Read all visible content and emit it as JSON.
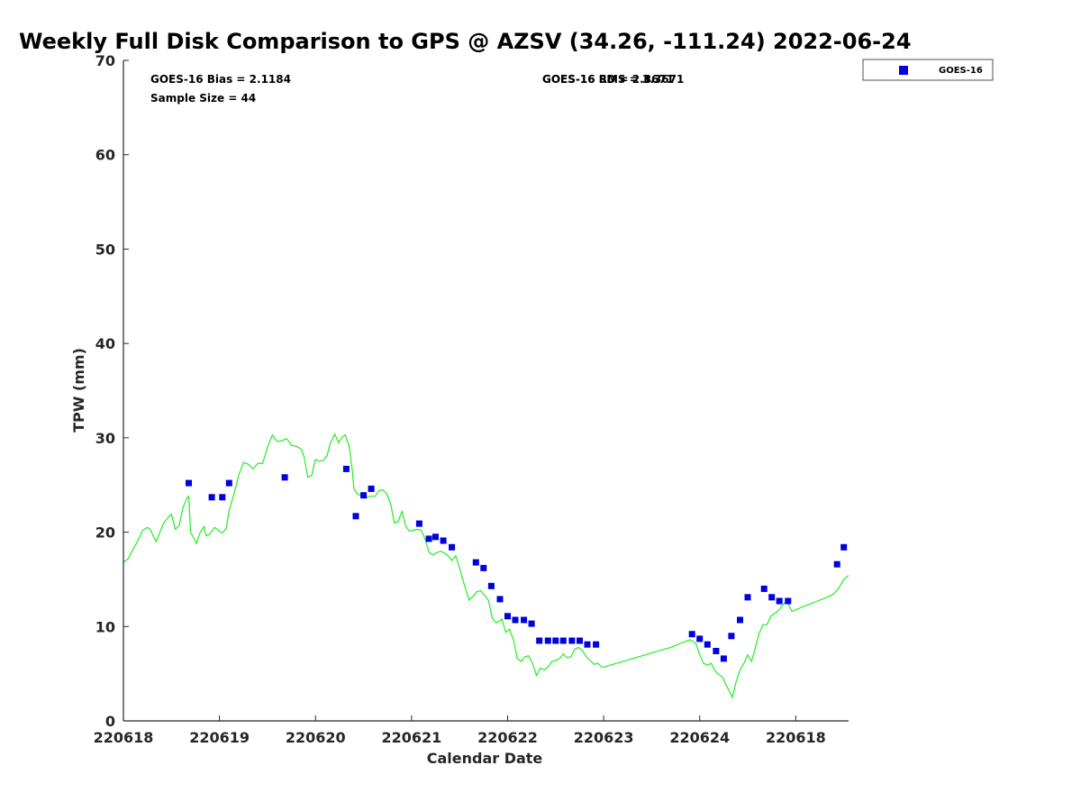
{
  "chart_data": {
    "type": "scatter",
    "title": "Weekly Full Disk Comparison to GPS @ AZSV (34.26, -111.24) 2022-06-24",
    "xlabel": "Calendar Date",
    "ylabel": "TPW (mm)",
    "xlim": [
      0,
      7.55
    ],
    "ylim": [
      0,
      70
    ],
    "yticks": [
      0,
      10,
      20,
      30,
      40,
      50,
      60,
      70
    ],
    "xticks": [
      {
        "x": 0,
        "label": "220618"
      },
      {
        "x": 1,
        "label": "220619"
      },
      {
        "x": 2,
        "label": "220620"
      },
      {
        "x": 3,
        "label": "220621"
      },
      {
        "x": 4,
        "label": "220622"
      },
      {
        "x": 5,
        "label": "220623"
      },
      {
        "x": 6,
        "label": "220624"
      },
      {
        "x": 7,
        "label": "220618"
      }
    ],
    "grid": false,
    "legend_position": "top-right",
    "annotations": {
      "bias": "GOES-16 Bias = 2.1184",
      "sample_size": "Sample Size = 44",
      "overlap_a": "GOES-16 RMS = 3.3671",
      "overlap_b": "GOES-16 SD = 2.8671"
    },
    "series": [
      {
        "name": "GOES-16",
        "kind": "scatter",
        "color": "#0000dd",
        "points": [
          [
            0.68,
            25.2
          ],
          [
            0.92,
            23.7
          ],
          [
            1.03,
            23.7
          ],
          [
            1.1,
            25.2
          ],
          [
            1.68,
            25.8
          ],
          [
            2.32,
            26.7
          ],
          [
            2.42,
            21.7
          ],
          [
            2.5,
            23.9
          ],
          [
            2.58,
            24.6
          ],
          [
            3.08,
            20.9
          ],
          [
            3.18,
            19.3
          ],
          [
            3.25,
            19.5
          ],
          [
            3.33,
            19.1
          ],
          [
            3.42,
            18.4
          ],
          [
            3.67,
            16.8
          ],
          [
            3.75,
            16.2
          ],
          [
            3.83,
            14.3
          ],
          [
            3.92,
            12.9
          ],
          [
            4.0,
            11.1
          ],
          [
            4.08,
            10.7
          ],
          [
            4.17,
            10.7
          ],
          [
            4.25,
            10.3
          ],
          [
            4.33,
            8.5
          ],
          [
            4.42,
            8.5
          ],
          [
            4.5,
            8.5
          ],
          [
            4.58,
            8.5
          ],
          [
            4.67,
            8.5
          ],
          [
            4.75,
            8.5
          ],
          [
            4.83,
            8.1
          ],
          [
            4.92,
            8.1
          ],
          [
            5.92,
            9.2
          ],
          [
            6.0,
            8.7
          ],
          [
            6.08,
            8.1
          ],
          [
            6.17,
            7.4
          ],
          [
            6.25,
            6.6
          ],
          [
            6.33,
            9.0
          ],
          [
            6.42,
            10.7
          ],
          [
            6.5,
            13.1
          ],
          [
            6.67,
            14.0
          ],
          [
            6.75,
            13.1
          ],
          [
            6.83,
            12.7
          ],
          [
            6.92,
            12.7
          ],
          [
            7.43,
            16.6
          ],
          [
            7.5,
            18.4
          ]
        ]
      },
      {
        "name": "",
        "kind": "line",
        "color": "#22ee22",
        "points": [
          [
            0.0,
            16.8
          ],
          [
            0.05,
            17.2
          ],
          [
            0.1,
            18.2
          ],
          [
            0.15,
            19.1
          ],
          [
            0.2,
            20.2
          ],
          [
            0.25,
            20.5
          ],
          [
            0.28,
            20.3
          ],
          [
            0.32,
            19.4
          ],
          [
            0.34,
            19.0
          ],
          [
            0.38,
            20.0
          ],
          [
            0.42,
            21.0
          ],
          [
            0.47,
            21.6
          ],
          [
            0.5,
            21.9
          ],
          [
            0.54,
            20.3
          ],
          [
            0.58,
            20.7
          ],
          [
            0.62,
            22.6
          ],
          [
            0.66,
            23.6
          ],
          [
            0.68,
            23.8
          ],
          [
            0.7,
            20.0
          ],
          [
            0.74,
            19.2
          ],
          [
            0.76,
            18.8
          ],
          [
            0.8,
            20.0
          ],
          [
            0.84,
            20.6
          ],
          [
            0.86,
            19.6
          ],
          [
            0.9,
            19.8
          ],
          [
            0.95,
            20.5
          ],
          [
            1.0,
            20.1
          ],
          [
            1.03,
            19.9
          ],
          [
            1.07,
            20.4
          ],
          [
            1.1,
            22.3
          ],
          [
            1.15,
            24.0
          ],
          [
            1.2,
            26.0
          ],
          [
            1.25,
            27.4
          ],
          [
            1.3,
            27.2
          ],
          [
            1.35,
            26.7
          ],
          [
            1.4,
            27.3
          ],
          [
            1.45,
            27.3
          ],
          [
            1.5,
            29.0
          ],
          [
            1.55,
            30.3
          ],
          [
            1.6,
            29.6
          ],
          [
            1.65,
            29.7
          ],
          [
            1.7,
            29.9
          ],
          [
            1.75,
            29.2
          ],
          [
            1.8,
            29.1
          ],
          [
            1.85,
            28.8
          ],
          [
            1.88,
            28.0
          ],
          [
            1.92,
            25.8
          ],
          [
            1.96,
            26.0
          ],
          [
            2.0,
            27.7
          ],
          [
            2.04,
            27.5
          ],
          [
            2.08,
            27.6
          ],
          [
            2.12,
            28.1
          ],
          [
            2.15,
            29.3
          ],
          [
            2.2,
            30.4
          ],
          [
            2.24,
            29.5
          ],
          [
            2.28,
            30.1
          ],
          [
            2.31,
            30.3
          ],
          [
            2.35,
            29.1
          ],
          [
            2.38,
            26.8
          ],
          [
            2.4,
            24.6
          ],
          [
            2.44,
            24.0
          ],
          [
            2.48,
            23.9
          ],
          [
            2.52,
            23.6
          ],
          [
            2.56,
            23.8
          ],
          [
            2.62,
            23.8
          ],
          [
            2.66,
            24.4
          ],
          [
            2.7,
            24.5
          ],
          [
            2.74,
            24.1
          ],
          [
            2.78,
            23.1
          ],
          [
            2.82,
            21.0
          ],
          [
            2.86,
            21.1
          ],
          [
            2.9,
            22.2
          ],
          [
            2.94,
            20.6
          ],
          [
            2.98,
            20.1
          ],
          [
            3.02,
            20.2
          ],
          [
            3.06,
            20.3
          ],
          [
            3.1,
            20.2
          ],
          [
            3.14,
            19.3
          ],
          [
            3.18,
            17.9
          ],
          [
            3.22,
            17.6
          ],
          [
            3.26,
            17.8
          ],
          [
            3.3,
            18.0
          ],
          [
            3.34,
            17.8
          ],
          [
            3.38,
            17.5
          ],
          [
            3.42,
            17.0
          ],
          [
            3.46,
            17.5
          ],
          [
            3.5,
            16.2
          ],
          [
            3.55,
            14.4
          ],
          [
            3.6,
            12.8
          ],
          [
            3.64,
            13.2
          ],
          [
            3.68,
            13.7
          ],
          [
            3.72,
            13.8
          ],
          [
            3.76,
            13.3
          ],
          [
            3.8,
            12.8
          ],
          [
            3.84,
            10.9
          ],
          [
            3.88,
            10.4
          ],
          [
            3.92,
            10.6
          ],
          [
            3.94,
            10.8
          ],
          [
            3.98,
            9.4
          ],
          [
            4.02,
            9.7
          ],
          [
            4.06,
            8.6
          ],
          [
            4.1,
            6.6
          ],
          [
            4.14,
            6.3
          ],
          [
            4.18,
            6.8
          ],
          [
            4.22,
            6.9
          ],
          [
            4.26,
            6.1
          ],
          [
            4.3,
            4.8
          ],
          [
            4.34,
            5.6
          ],
          [
            4.38,
            5.4
          ],
          [
            4.42,
            5.7
          ],
          [
            4.46,
            6.3
          ],
          [
            4.5,
            6.4
          ],
          [
            4.54,
            6.6
          ],
          [
            4.58,
            7.1
          ],
          [
            4.62,
            6.7
          ],
          [
            4.66,
            6.8
          ],
          [
            4.7,
            7.6
          ],
          [
            4.74,
            7.8
          ],
          [
            4.78,
            7.4
          ],
          [
            4.82,
            6.8
          ],
          [
            4.86,
            6.4
          ],
          [
            4.9,
            6.0
          ],
          [
            4.94,
            6.1
          ],
          [
            4.98,
            5.7
          ],
          [
            5.0,
            5.7
          ],
          [
            5.1,
            6.0
          ],
          [
            5.3,
            6.6
          ],
          [
            5.5,
            7.2
          ],
          [
            5.7,
            7.8
          ],
          [
            5.85,
            8.4
          ],
          [
            5.9,
            8.6
          ],
          [
            5.96,
            8.2
          ],
          [
            6.0,
            7.0
          ],
          [
            6.04,
            6.1
          ],
          [
            6.08,
            5.9
          ],
          [
            6.12,
            6.1
          ],
          [
            6.16,
            5.3
          ],
          [
            6.2,
            4.9
          ],
          [
            6.24,
            4.6
          ],
          [
            6.28,
            3.7
          ],
          [
            6.32,
            2.9
          ],
          [
            6.34,
            2.5
          ],
          [
            6.38,
            4.2
          ],
          [
            6.42,
            5.4
          ],
          [
            6.46,
            6.1
          ],
          [
            6.5,
            7.0
          ],
          [
            6.54,
            6.3
          ],
          [
            6.58,
            7.8
          ],
          [
            6.62,
            9.3
          ],
          [
            6.66,
            10.2
          ],
          [
            6.7,
            10.2
          ],
          [
            6.74,
            11.1
          ],
          [
            6.78,
            11.4
          ],
          [
            6.82,
            11.7
          ],
          [
            6.86,
            12.2
          ],
          [
            6.9,
            12.7
          ],
          [
            6.92,
            12.4
          ],
          [
            6.96,
            11.6
          ],
          [
            7.1,
            12.2
          ],
          [
            7.25,
            12.8
          ],
          [
            7.35,
            13.2
          ],
          [
            7.4,
            13.5
          ],
          [
            7.45,
            14.1
          ],
          [
            7.5,
            15.0
          ],
          [
            7.55,
            15.4
          ]
        ]
      }
    ]
  }
}
